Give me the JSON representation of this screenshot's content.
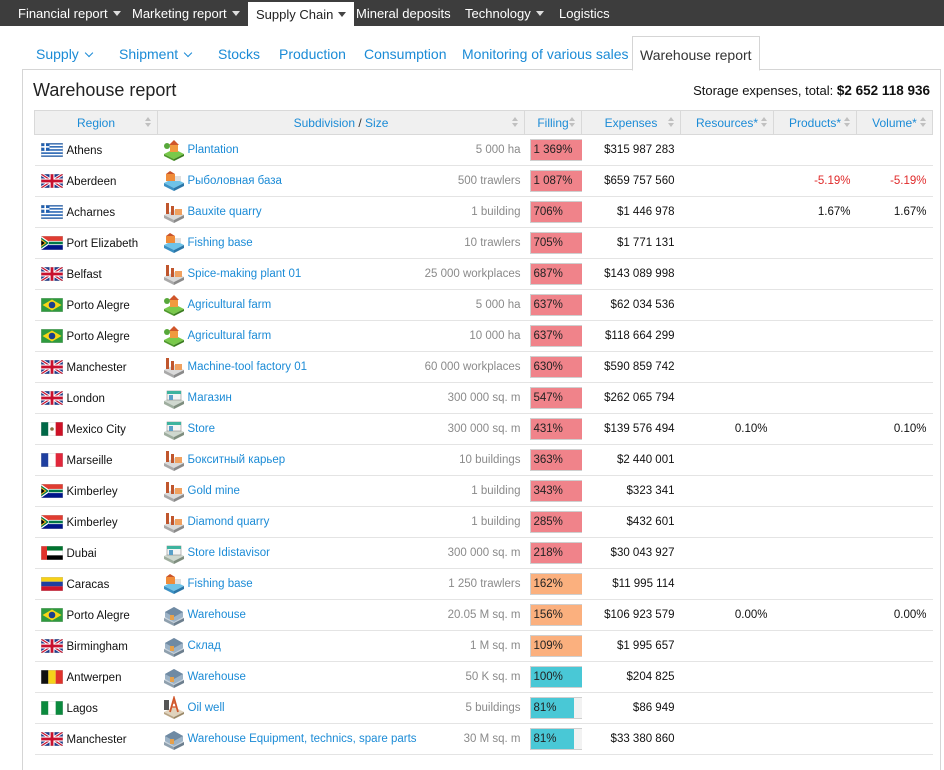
{
  "topnav": [
    {
      "label": "Financial report",
      "caret": true,
      "active": false
    },
    {
      "label": "Marketing report",
      "caret": true,
      "active": false
    },
    {
      "label": "Supply Chain",
      "caret": true,
      "active": true
    },
    {
      "label": "Mineral deposits",
      "caret": false,
      "active": false
    },
    {
      "label": "Technology",
      "caret": true,
      "active": false
    },
    {
      "label": "Logistics",
      "caret": false,
      "active": false
    }
  ],
  "subtabs": [
    {
      "label": "Supply",
      "chevron": true,
      "active": false
    },
    {
      "label": "Shipment",
      "chevron": true,
      "active": false
    },
    {
      "label": "Stocks",
      "chevron": false,
      "active": false
    },
    {
      "label": "Production",
      "chevron": false,
      "active": false
    },
    {
      "label": "Consumption",
      "chevron": false,
      "active": false
    },
    {
      "label": "Monitoring of various sales",
      "chevron": false,
      "active": false
    },
    {
      "label": "Warehouse report",
      "chevron": false,
      "active": true
    }
  ],
  "page": {
    "title": "Warehouse report",
    "expenses_label": "Storage expenses, total:",
    "expenses_total": "$2 652 118 936"
  },
  "table": {
    "headers": {
      "region": "Region",
      "subdivision": "Subdivision",
      "slash": "/",
      "size": "Size",
      "filling": "Filling",
      "expenses": "Expenses",
      "resources": "Resources*",
      "products": "Products*",
      "volume": "Volume*"
    },
    "rows": [
      {
        "region": "Athens",
        "flag": "greece",
        "icon": "farm-icon",
        "subdivision": "Plantation",
        "size": "5 000 ha",
        "filling": "1 369%",
        "fill_pct": 100,
        "fill_color": "#f0838a",
        "expenses": "$315 987 283",
        "resources": "",
        "products": "",
        "volume": ""
      },
      {
        "region": "Aberdeen",
        "flag": "uk",
        "icon": "fishing-icon",
        "subdivision": "Рыболовная база",
        "size": "500 trawlers",
        "filling": "1 087%",
        "fill_pct": 100,
        "fill_color": "#f0838a",
        "expenses": "$659 757 560",
        "resources": "",
        "products": "-5.19%",
        "volume": "-5.19%"
      },
      {
        "region": "Acharnes",
        "flag": "greece",
        "icon": "factory-icon",
        "subdivision": "Bauxite quarry",
        "size": "1 building",
        "filling": "706%",
        "fill_pct": 100,
        "fill_color": "#f0838a",
        "expenses": "$1 446 978",
        "resources": "",
        "products": "1.67%",
        "volume": "1.67%"
      },
      {
        "region": "Port Elizabeth",
        "flag": "south-africa",
        "icon": "fishing-icon",
        "subdivision": "Fishing base",
        "size": "10 trawlers",
        "filling": "705%",
        "fill_pct": 100,
        "fill_color": "#f0838a",
        "expenses": "$1 771 131",
        "resources": "",
        "products": "",
        "volume": ""
      },
      {
        "region": "Belfast",
        "flag": "uk",
        "icon": "factory-icon",
        "subdivision": "Spice-making plant 01",
        "size": "25 000 workplaces",
        "filling": "687%",
        "fill_pct": 100,
        "fill_color": "#f0838a",
        "expenses": "$143 089 998",
        "resources": "",
        "products": "",
        "volume": ""
      },
      {
        "region": "Porto Alegre",
        "flag": "brazil",
        "icon": "farm-icon",
        "subdivision": "Agricultural farm",
        "size": "5 000 ha",
        "filling": "637%",
        "fill_pct": 100,
        "fill_color": "#f0838a",
        "expenses": "$62 034 536",
        "resources": "",
        "products": "",
        "volume": ""
      },
      {
        "region": "Porto Alegre",
        "flag": "brazil",
        "icon": "farm-icon",
        "subdivision": "Agricultural farm",
        "size": "10 000 ha",
        "filling": "637%",
        "fill_pct": 100,
        "fill_color": "#f0838a",
        "expenses": "$118 664 299",
        "resources": "",
        "products": "",
        "volume": ""
      },
      {
        "region": "Manchester",
        "flag": "uk",
        "icon": "factory-icon",
        "subdivision": "Machine-tool factory 01",
        "size": "60 000 workplaces",
        "filling": "630%",
        "fill_pct": 100,
        "fill_color": "#f0838a",
        "expenses": "$590 859 742",
        "resources": "",
        "products": "",
        "volume": ""
      },
      {
        "region": "London",
        "flag": "uk",
        "icon": "store-icon",
        "subdivision": "Магазин",
        "size": "300 000 sq. m",
        "filling": "547%",
        "fill_pct": 100,
        "fill_color": "#f0838a",
        "expenses": "$262 065 794",
        "resources": "",
        "products": "",
        "volume": ""
      },
      {
        "region": "Mexico City",
        "flag": "mexico",
        "icon": "store-icon",
        "subdivision": "Store",
        "size": "300 000 sq. m",
        "filling": "431%",
        "fill_pct": 100,
        "fill_color": "#f0838a",
        "expenses": "$139 576 494",
        "resources": "0.10%",
        "products": "",
        "volume": "0.10%"
      },
      {
        "region": "Marseille",
        "flag": "france",
        "icon": "factory-icon",
        "subdivision": "Бокситный карьер",
        "size": "10 buildings",
        "filling": "363%",
        "fill_pct": 100,
        "fill_color": "#f0838a",
        "expenses": "$2 440 001",
        "resources": "",
        "products": "",
        "volume": ""
      },
      {
        "region": "Kimberley",
        "flag": "south-africa",
        "icon": "factory-icon",
        "subdivision": "Gold mine",
        "size": "1 building",
        "filling": "343%",
        "fill_pct": 100,
        "fill_color": "#f0838a",
        "expenses": "$323 341",
        "resources": "",
        "products": "",
        "volume": ""
      },
      {
        "region": "Kimberley",
        "flag": "south-africa",
        "icon": "factory-icon",
        "subdivision": "Diamond quarry",
        "size": "1 building",
        "filling": "285%",
        "fill_pct": 100,
        "fill_color": "#f0838a",
        "expenses": "$432 601",
        "resources": "",
        "products": "",
        "volume": ""
      },
      {
        "region": "Dubai",
        "flag": "uae",
        "icon": "store-icon",
        "subdivision": "Store Idistavisor",
        "size": "300 000 sq. m",
        "filling": "218%",
        "fill_pct": 100,
        "fill_color": "#f0838a",
        "expenses": "$30 043 927",
        "resources": "",
        "products": "",
        "volume": ""
      },
      {
        "region": "Caracas",
        "flag": "venezuela",
        "icon": "fishing-icon",
        "subdivision": "Fishing base",
        "size": "1 250 trawlers",
        "filling": "162%",
        "fill_pct": 100,
        "fill_color": "#fbb07e",
        "expenses": "$11 995 114",
        "resources": "",
        "products": "",
        "volume": ""
      },
      {
        "region": "Porto Alegre",
        "flag": "brazil",
        "icon": "warehouse-icon",
        "subdivision": "Warehouse",
        "size": "20.05 M sq. m",
        "filling": "156%",
        "fill_pct": 100,
        "fill_color": "#fbb07e",
        "expenses": "$106 923 579",
        "resources": "0.00%",
        "products": "",
        "volume": "0.00%"
      },
      {
        "region": "Birmingham",
        "flag": "uk",
        "icon": "warehouse-icon",
        "subdivision": "Склад",
        "size": "1 M sq. m",
        "filling": "109%",
        "fill_pct": 100,
        "fill_color": "#fbb07e",
        "expenses": "$1 995 657",
        "resources": "",
        "products": "",
        "volume": ""
      },
      {
        "region": "Antwerpen",
        "flag": "belgium",
        "icon": "warehouse-icon",
        "subdivision": "Warehouse",
        "size": "50 K sq. m",
        "filling": "100%",
        "fill_pct": 100,
        "fill_color": "#49c8d6",
        "expenses": "$204 825",
        "resources": "",
        "products": "",
        "volume": ""
      },
      {
        "region": "Lagos",
        "flag": "nigeria",
        "icon": "oil-well-icon",
        "subdivision": "Oil well",
        "size": "5 buildings",
        "filling": "81%",
        "fill_pct": 81,
        "fill_color": "#49c8d6",
        "expenses": "$86 949",
        "resources": "",
        "products": "",
        "volume": ""
      },
      {
        "region": "Manchester",
        "flag": "uk",
        "icon": "warehouse-icon",
        "subdivision": "Warehouse Equipment, technics, spare parts",
        "size": "30 M sq. m",
        "filling": "81%",
        "fill_pct": 81,
        "fill_color": "#49c8d6",
        "expenses": "$33 380 860",
        "resources": "",
        "products": "",
        "volume": ""
      }
    ]
  }
}
